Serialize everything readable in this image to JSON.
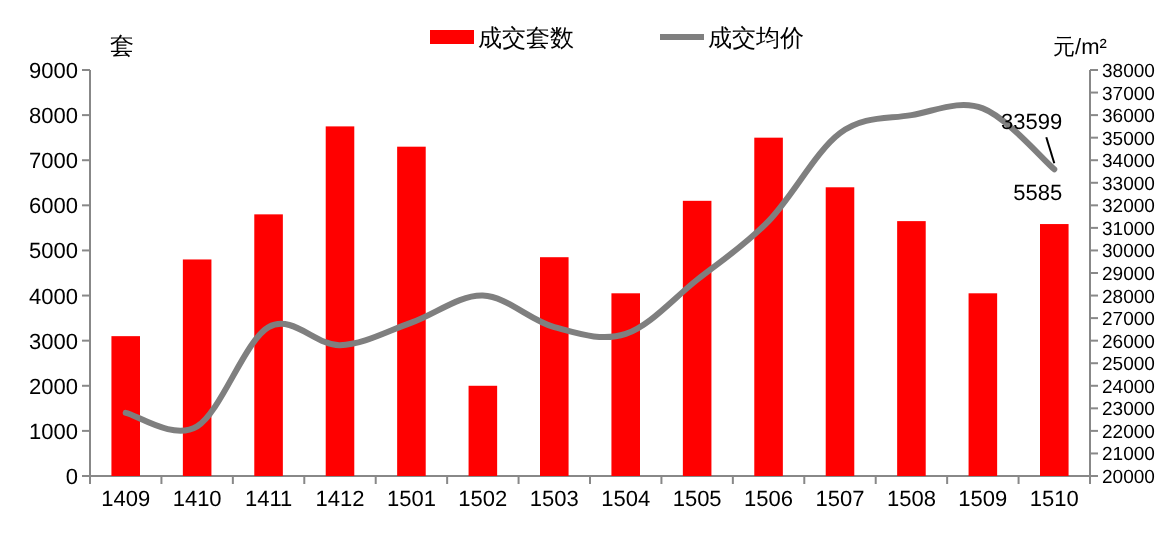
{
  "chart_data": {
    "type": "bar",
    "categories": [
      "1409",
      "1410",
      "1411",
      "1412",
      "1501",
      "1502",
      "1503",
      "1504",
      "1505",
      "1506",
      "1507",
      "1508",
      "1509",
      "1510"
    ],
    "series": [
      {
        "name": "成交套数",
        "color": "#ff0000",
        "values": [
          3100,
          4800,
          5800,
          7750,
          7300,
          2000,
          4850,
          4050,
          6100,
          7500,
          6400,
          5650,
          4050,
          5585
        ],
        "value_labels": [
          null,
          null,
          null,
          null,
          null,
          null,
          null,
          null,
          null,
          null,
          null,
          null,
          null,
          "5585"
        ]
      },
      {
        "name": "成交均价",
        "type": "line",
        "axis": "y2",
        "color": "#7f7f7f",
        "values": [
          22800,
          22200,
          26600,
          25800,
          26800,
          28000,
          26600,
          26300,
          28700,
          31300,
          35200,
          36000,
          36300,
          33599
        ],
        "value_labels": [
          null,
          null,
          null,
          null,
          null,
          null,
          null,
          null,
          null,
          null,
          null,
          null,
          null,
          "33599"
        ]
      }
    ],
    "ylim": [
      0,
      9000
    ],
    "yticks": [
      0,
      1000,
      2000,
      3000,
      4000,
      5000,
      6000,
      7000,
      8000,
      9000
    ],
    "y2lim": [
      20000,
      38000
    ],
    "y2ticks": [
      20000,
      21000,
      22000,
      23000,
      24000,
      25000,
      26000,
      27000,
      28000,
      29000,
      30000,
      31000,
      32000,
      33000,
      34000,
      35000,
      36000,
      37000,
      38000
    ],
    "ylabel": "套",
    "y2label": "元/m²",
    "legend": "top",
    "grid": false
  }
}
